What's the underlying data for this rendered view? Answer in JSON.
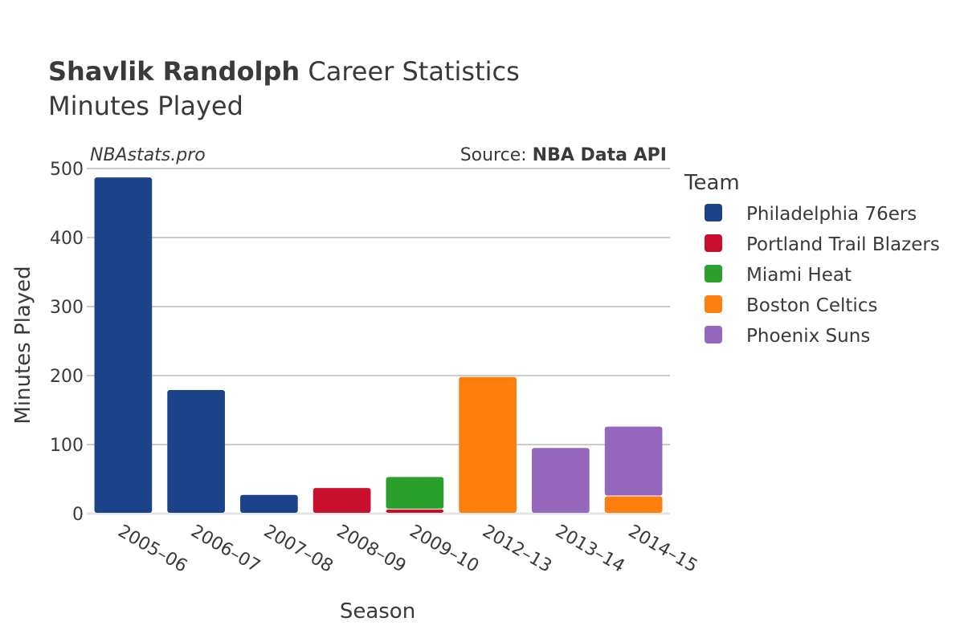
{
  "header": {
    "player_name": "Shavlik Randolph",
    "title_suffix": " Career Statistics",
    "subtitle": "Minutes Played"
  },
  "watermark": "NBAstats.pro",
  "source": {
    "prefix": "Source: ",
    "name": "NBA Data API"
  },
  "legend": {
    "title": "Team"
  },
  "chart_data": {
    "type": "bar",
    "stacked": true,
    "xlabel": "Season",
    "ylabel": "Minutes Played",
    "ylim": [
      0,
      500
    ],
    "yticks": [
      0,
      100,
      200,
      300,
      400,
      500
    ],
    "grid": true,
    "legend_position": "right",
    "categories": [
      "2005–06",
      "2006–07",
      "2007–08",
      "2008–09",
      "2009–10",
      "2012–13",
      "2013–14",
      "2014–15"
    ],
    "series": [
      {
        "name": "Philadelphia 76ers",
        "color": "#1c4289",
        "values": [
          487,
          179,
          27,
          0,
          0,
          0,
          0,
          0
        ]
      },
      {
        "name": "Portland Trail Blazers",
        "color": "#c8102e",
        "values": [
          0,
          0,
          0,
          37,
          6,
          0,
          0,
          0
        ]
      },
      {
        "name": "Miami Heat",
        "color": "#2ca02c",
        "values": [
          0,
          0,
          0,
          0,
          47,
          0,
          0,
          0
        ]
      },
      {
        "name": "Boston Celtics",
        "color": "#ff7f0e",
        "values": [
          0,
          0,
          0,
          0,
          0,
          198,
          0,
          25
        ]
      },
      {
        "name": "Phoenix Suns",
        "color": "#9467bd",
        "values": [
          0,
          0,
          0,
          0,
          0,
          0,
          95,
          101
        ]
      }
    ]
  }
}
